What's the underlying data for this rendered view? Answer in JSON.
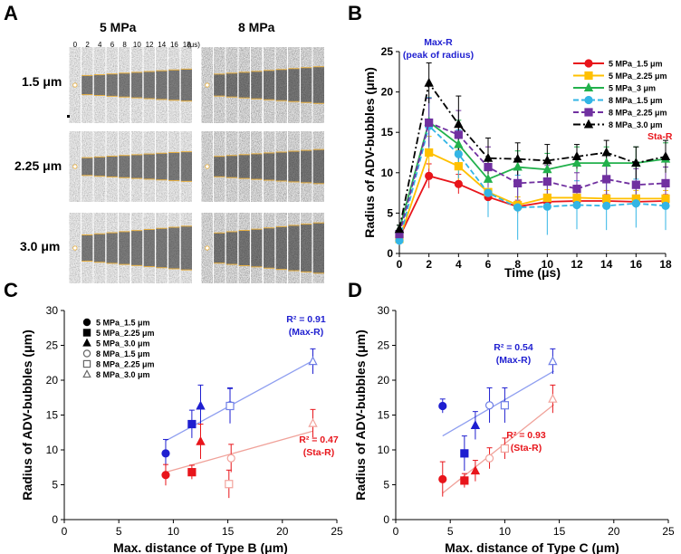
{
  "colors": {
    "red": "#e8151b",
    "orange": "#ffc000",
    "green": "#22b14c",
    "cyan": "#33b5e5",
    "purple": "#7030a0",
    "black": "#000000",
    "blue": "#1f1fd0",
    "blueLine": "#8e9ef0",
    "salmon": "#f2a39c",
    "salmonLine": "#f0a29a"
  },
  "panelA": {
    "letter": "A",
    "col_labels": [
      "5 MPa",
      "8 MPa"
    ],
    "time_ticks": [
      "0",
      "2",
      "4",
      "6",
      "8",
      "10",
      "12",
      "14",
      "16",
      "18"
    ],
    "time_unit": "(μs)",
    "row_labels": [
      "1.5 μm",
      "2.25 μm",
      "3.0 μm"
    ]
  },
  "chart_data": [
    {
      "panel": "B",
      "type": "line",
      "xlabel": "Time (μs)",
      "ylabel": "Radius of ADV-bubbles (μm)",
      "xlim": [
        0,
        18
      ],
      "ylim": [
        0,
        25
      ],
      "xticks": [
        0,
        2,
        4,
        6,
        8,
        10,
        12,
        14,
        16,
        18
      ],
      "yticks": [
        0,
        5,
        10,
        15,
        20,
        25
      ],
      "x": [
        0,
        2,
        4,
        6,
        8,
        10,
        12,
        14,
        16,
        18
      ],
      "annotations": [
        {
          "text": "Max-R",
          "text2": "(peak of radius)",
          "color": "#1f1fd0"
        },
        {
          "text": "Sta-R",
          "color": "#e8151b"
        }
      ],
      "series": [
        {
          "name": "5 MPa_1.5 μm",
          "color": "#e8151b",
          "marker": "circle",
          "filled": true,
          "dash": "",
          "values": [
            2,
            9.6,
            8.6,
            7.0,
            5.8,
            6.4,
            6.5,
            6.5,
            6.4,
            6.5
          ],
          "err": [
            0.5,
            1.5,
            1.2,
            1.0,
            0.8,
            0.8,
            0.8,
            0.8,
            0.8,
            0.8
          ]
        },
        {
          "name": "5 MPa_2.25 μm",
          "color": "#ffc000",
          "marker": "square",
          "filled": true,
          "dash": "",
          "values": [
            1.8,
            12.5,
            10.8,
            7.6,
            6.0,
            6.9,
            6.9,
            6.8,
            6.8,
            6.8
          ],
          "err": [
            0.5,
            2.0,
            2.0,
            1.5,
            1.0,
            1.0,
            1.0,
            1.0,
            1.0,
            1.0
          ]
        },
        {
          "name": "5 MPa_3 μm",
          "color": "#22b14c",
          "marker": "triangle",
          "filled": true,
          "dash": "",
          "values": [
            3.0,
            16.3,
            13.5,
            9.2,
            10.7,
            10.4,
            11.2,
            11.2,
            11.2,
            11.7
          ],
          "err": [
            0.5,
            3.0,
            3.0,
            2.5,
            2.0,
            2.0,
            2.0,
            2.0,
            2.0,
            2.0
          ]
        },
        {
          "name": "8 MPa_1.5 μm",
          "color": "#33b5e5",
          "marker": "circle",
          "filled": true,
          "dash": "6,3",
          "values": [
            1.6,
            15.8,
            12.3,
            7.5,
            5.7,
            5.8,
            6.0,
            5.9,
            6.2,
            5.9
          ],
          "err": [
            0.5,
            3.5,
            3.0,
            3.0,
            4.0,
            3.5,
            3.0,
            3.0,
            3.0,
            3.0
          ]
        },
        {
          "name": "8 MPa_2.25 μm",
          "color": "#7030a0",
          "marker": "square",
          "filled": true,
          "dash": "6,3",
          "values": [
            2.4,
            16.2,
            14.7,
            10.7,
            8.7,
            8.9,
            8.0,
            9.2,
            8.5,
            8.7
          ],
          "err": [
            0.5,
            3.0,
            3.0,
            2.5,
            2.0,
            2.0,
            2.0,
            2.0,
            2.0,
            2.0
          ]
        },
        {
          "name": "8 MPa_3.0 μm",
          "color": "#000000",
          "marker": "triangle",
          "filled": true,
          "dash": "8,3,2,3",
          "values": [
            3.0,
            21.1,
            16.0,
            11.8,
            11.7,
            11.5,
            12.0,
            12.5,
            11.2,
            12.0
          ],
          "err": [
            0.5,
            2.5,
            3.5,
            2.5,
            2.0,
            2.0,
            1.5,
            1.5,
            2.0,
            2.0
          ]
        }
      ]
    },
    {
      "panel": "C",
      "type": "scatter",
      "xlabel": "Max. distance of Type B (μm)",
      "ylabel": "Radius of ADV-bubbles (μm)",
      "xlim": [
        0,
        25
      ],
      "ylim": [
        0,
        30
      ],
      "xticks": [
        0,
        5,
        10,
        15,
        20,
        25
      ],
      "yticks": [
        0,
        5,
        10,
        15,
        20,
        25,
        30
      ],
      "legend": [
        {
          "name": "5 MPa_1.5 μm",
          "marker": "circle",
          "filled": true
        },
        {
          "name": "5 MPa_2.25 μm",
          "marker": "square",
          "filled": true
        },
        {
          "name": "5 MPa_3.0 μm",
          "marker": "triangle",
          "filled": true
        },
        {
          "name": "8 MPa_1.5 μm",
          "marker": "circle",
          "filled": false
        },
        {
          "name": "8 MPa_2.25 μm",
          "marker": "square",
          "filled": false
        },
        {
          "name": "8 MPa_3.0 μm",
          "marker": "triangle",
          "filled": false
        }
      ],
      "annotations": [
        {
          "text": "R² = 0.91",
          "text2": "(Max-R)",
          "color": "#1f1fd0"
        },
        {
          "text": "R² = 0.47",
          "text2": "(Sta-R)",
          "color": "#e8151b"
        }
      ],
      "fit_lines": [
        {
          "name": "Max-R",
          "x": [
            9.3,
            22.8
          ],
          "y": [
            11.3,
            22.8
          ],
          "color": "#8e9ef0"
        },
        {
          "name": "Sta-R",
          "x": [
            9.3,
            22.8
          ],
          "y": [
            6.8,
            12.7
          ],
          "color": "#f0a29a"
        }
      ],
      "points": [
        {
          "group": "Max-R",
          "marker": "circle",
          "filled": true,
          "x": 9.3,
          "y": 9.5,
          "err": 2.0
        },
        {
          "group": "Max-R",
          "marker": "square",
          "filled": true,
          "x": 11.7,
          "y": 13.7,
          "err": 2.0
        },
        {
          "group": "Max-R",
          "marker": "triangle",
          "filled": true,
          "x": 12.5,
          "y": 16.3,
          "err": 3.0
        },
        {
          "group": "Max-R",
          "marker": "circle",
          "filled": false,
          "x": 15.2,
          "y": 16.4,
          "err": 2.5
        },
        {
          "group": "Max-R",
          "marker": "square",
          "filled": false,
          "x": 15.2,
          "y": 16.3,
          "err": 2.5
        },
        {
          "group": "Max-R",
          "marker": "triangle",
          "filled": false,
          "x": 22.8,
          "y": 22.7,
          "err": 1.8
        },
        {
          "group": "Sta-R",
          "marker": "circle",
          "filled": true,
          "x": 9.3,
          "y": 6.4,
          "err": 1.5
        },
        {
          "group": "Sta-R",
          "marker": "square",
          "filled": true,
          "x": 11.7,
          "y": 6.8,
          "err": 1.0
        },
        {
          "group": "Sta-R",
          "marker": "triangle",
          "filled": true,
          "x": 12.5,
          "y": 11.2,
          "err": 2.5
        },
        {
          "group": "Sta-R",
          "marker": "circle",
          "filled": false,
          "x": 15.3,
          "y": 8.8,
          "err": 2.0
        },
        {
          "group": "Sta-R",
          "marker": "square",
          "filled": false,
          "x": 15.1,
          "y": 5.1,
          "err": 2.0
        },
        {
          "group": "Sta-R",
          "marker": "triangle",
          "filled": false,
          "x": 22.8,
          "y": 13.8,
          "err": 2.0
        }
      ]
    },
    {
      "panel": "D",
      "type": "scatter",
      "xlabel": "Max. distance of Type C (μm)",
      "ylabel": "Radius of ADV-bubbles (μm)",
      "xlim": [
        0,
        25
      ],
      "ylim": [
        0,
        30
      ],
      "xticks": [
        0,
        5,
        10,
        15,
        20,
        25
      ],
      "yticks": [
        0,
        5,
        10,
        15,
        20,
        25,
        30
      ],
      "annotations": [
        {
          "text": "R² = 0.54",
          "text2": "(Max-R)",
          "color": "#1f1fd0"
        },
        {
          "text": "R² = 0.93",
          "text2": "(Sta-R)",
          "color": "#e8151b"
        }
      ],
      "fit_lines": [
        {
          "name": "Max-R",
          "x": [
            4.3,
            14.5
          ],
          "y": [
            12.0,
            21.3
          ],
          "color": "#8e9ef0"
        },
        {
          "name": "Sta-R",
          "x": [
            4.3,
            14.5
          ],
          "y": [
            3.8,
            16.5
          ],
          "color": "#f0a29a"
        }
      ],
      "points": [
        {
          "group": "Max-R",
          "marker": "circle",
          "filled": true,
          "x": 4.3,
          "y": 16.3,
          "err": 1.0
        },
        {
          "group": "Max-R",
          "marker": "square",
          "filled": true,
          "x": 6.3,
          "y": 9.5,
          "err": 2.5
        },
        {
          "group": "Max-R",
          "marker": "triangle",
          "filled": true,
          "x": 7.3,
          "y": 13.5,
          "err": 2.0
        },
        {
          "group": "Max-R",
          "marker": "circle",
          "filled": false,
          "x": 8.6,
          "y": 16.4,
          "err": 2.5
        },
        {
          "group": "Max-R",
          "marker": "square",
          "filled": false,
          "x": 10.0,
          "y": 16.4,
          "err": 2.5
        },
        {
          "group": "Max-R",
          "marker": "triangle",
          "filled": false,
          "x": 14.4,
          "y": 22.7,
          "err": 1.8
        },
        {
          "group": "Sta-R",
          "marker": "circle",
          "filled": true,
          "x": 4.3,
          "y": 5.8,
          "err": 2.5
        },
        {
          "group": "Sta-R",
          "marker": "square",
          "filled": true,
          "x": 6.3,
          "y": 5.6,
          "err": 1.0
        },
        {
          "group": "Sta-R",
          "marker": "triangle",
          "filled": true,
          "x": 7.3,
          "y": 7.0,
          "err": 1.5
        },
        {
          "group": "Sta-R",
          "marker": "circle",
          "filled": false,
          "x": 8.6,
          "y": 8.8,
          "err": 1.5
        },
        {
          "group": "Sta-R",
          "marker": "square",
          "filled": false,
          "x": 10.0,
          "y": 10.2,
          "err": 1.5
        },
        {
          "group": "Sta-R",
          "marker": "triangle",
          "filled": false,
          "x": 14.4,
          "y": 17.3,
          "err": 2.0
        }
      ]
    }
  ]
}
